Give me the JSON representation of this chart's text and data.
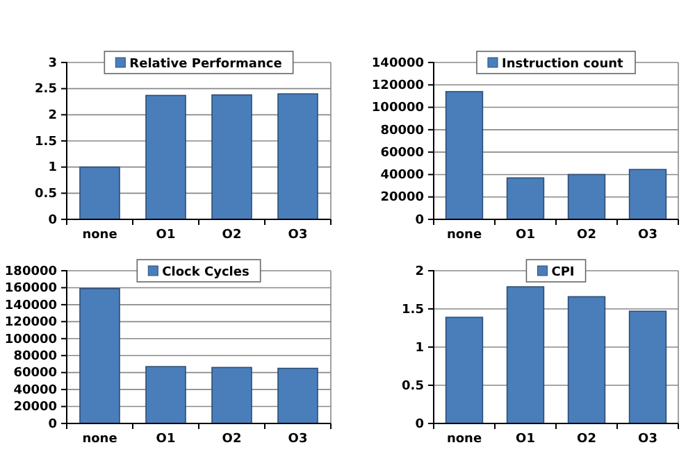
{
  "chart_data": [
    {
      "type": "bar",
      "categories": [
        "none",
        "O1",
        "O2",
        "O3"
      ],
      "series": [
        {
          "name": "Relative Performance",
          "color": "#4a7ebb",
          "values": [
            1.0,
            2.37,
            2.38,
            2.4
          ]
        }
      ],
      "ylim": [
        0,
        3
      ],
      "yticks": [
        0,
        0.5,
        1,
        1.5,
        2,
        2.5,
        3
      ],
      "grid": "y",
      "legend": "top"
    },
    {
      "type": "bar",
      "categories": [
        "none",
        "O1",
        "O2",
        "O3"
      ],
      "series": [
        {
          "name": "Instruction count",
          "color": "#4a7ebb",
          "values": [
            114000,
            37000,
            40000,
            44500
          ]
        }
      ],
      "ylim": [
        0,
        140000
      ],
      "yticks": [
        0,
        20000,
        40000,
        60000,
        80000,
        100000,
        120000,
        140000
      ],
      "grid": "y",
      "legend": "top"
    },
    {
      "type": "bar",
      "categories": [
        "none",
        "O1",
        "O2",
        "O3"
      ],
      "series": [
        {
          "name": "Clock Cycles",
          "color": "#4a7ebb",
          "values": [
            159000,
            67000,
            66000,
            65000
          ]
        }
      ],
      "ylim": [
        0,
        180000
      ],
      "yticks": [
        0,
        20000,
        40000,
        60000,
        80000,
        100000,
        120000,
        140000,
        160000,
        180000
      ],
      "grid": "y",
      "legend": "top"
    },
    {
      "type": "bar",
      "categories": [
        "none",
        "O1",
        "O2",
        "O3"
      ],
      "series": [
        {
          "name": "CPI",
          "color": "#4a7ebb",
          "values": [
            1.39,
            1.79,
            1.66,
            1.47
          ]
        }
      ],
      "ylim": [
        0,
        2
      ],
      "yticks": [
        0,
        0.5,
        1,
        1.5,
        2
      ],
      "grid": "y",
      "legend": "top"
    }
  ]
}
